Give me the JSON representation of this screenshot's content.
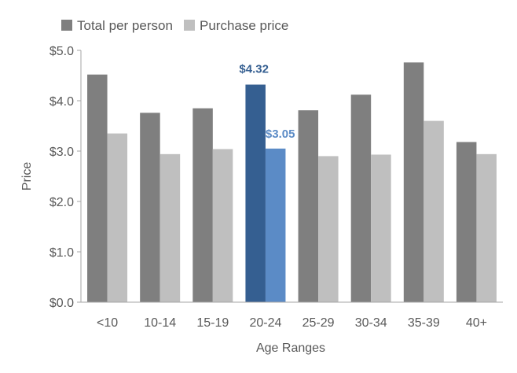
{
  "chart_data": {
    "type": "bar",
    "title": "",
    "xlabel": "Age Ranges",
    "ylabel": "Price",
    "ylim": [
      0,
      5
    ],
    "y_ticks": [
      0,
      1,
      2,
      3,
      4,
      5
    ],
    "y_tick_labels": [
      "$0.0",
      "$1.0",
      "$2.0",
      "$3.0",
      "$4.0",
      "$5.0"
    ],
    "categories": [
      "<10",
      "10-14",
      "15-19",
      "20-24",
      "25-29",
      "30-34",
      "35-39",
      "40+"
    ],
    "series": [
      {
        "name": "Total per person",
        "values": [
          4.52,
          3.76,
          3.85,
          4.32,
          3.81,
          4.12,
          4.76,
          3.18
        ],
        "color": "#7f7f7f"
      },
      {
        "name": "Purchase price",
        "values": [
          3.35,
          2.94,
          3.04,
          3.05,
          2.9,
          2.93,
          3.6,
          2.94
        ],
        "color": "#bfbfbf"
      }
    ],
    "highlight": {
      "category": "20-24",
      "colors": [
        "#355f91",
        "#5b8bc6"
      ],
      "labels": [
        "$4.32",
        "$3.05"
      ]
    },
    "legend": {
      "placement": "top-left"
    },
    "grid": false
  }
}
